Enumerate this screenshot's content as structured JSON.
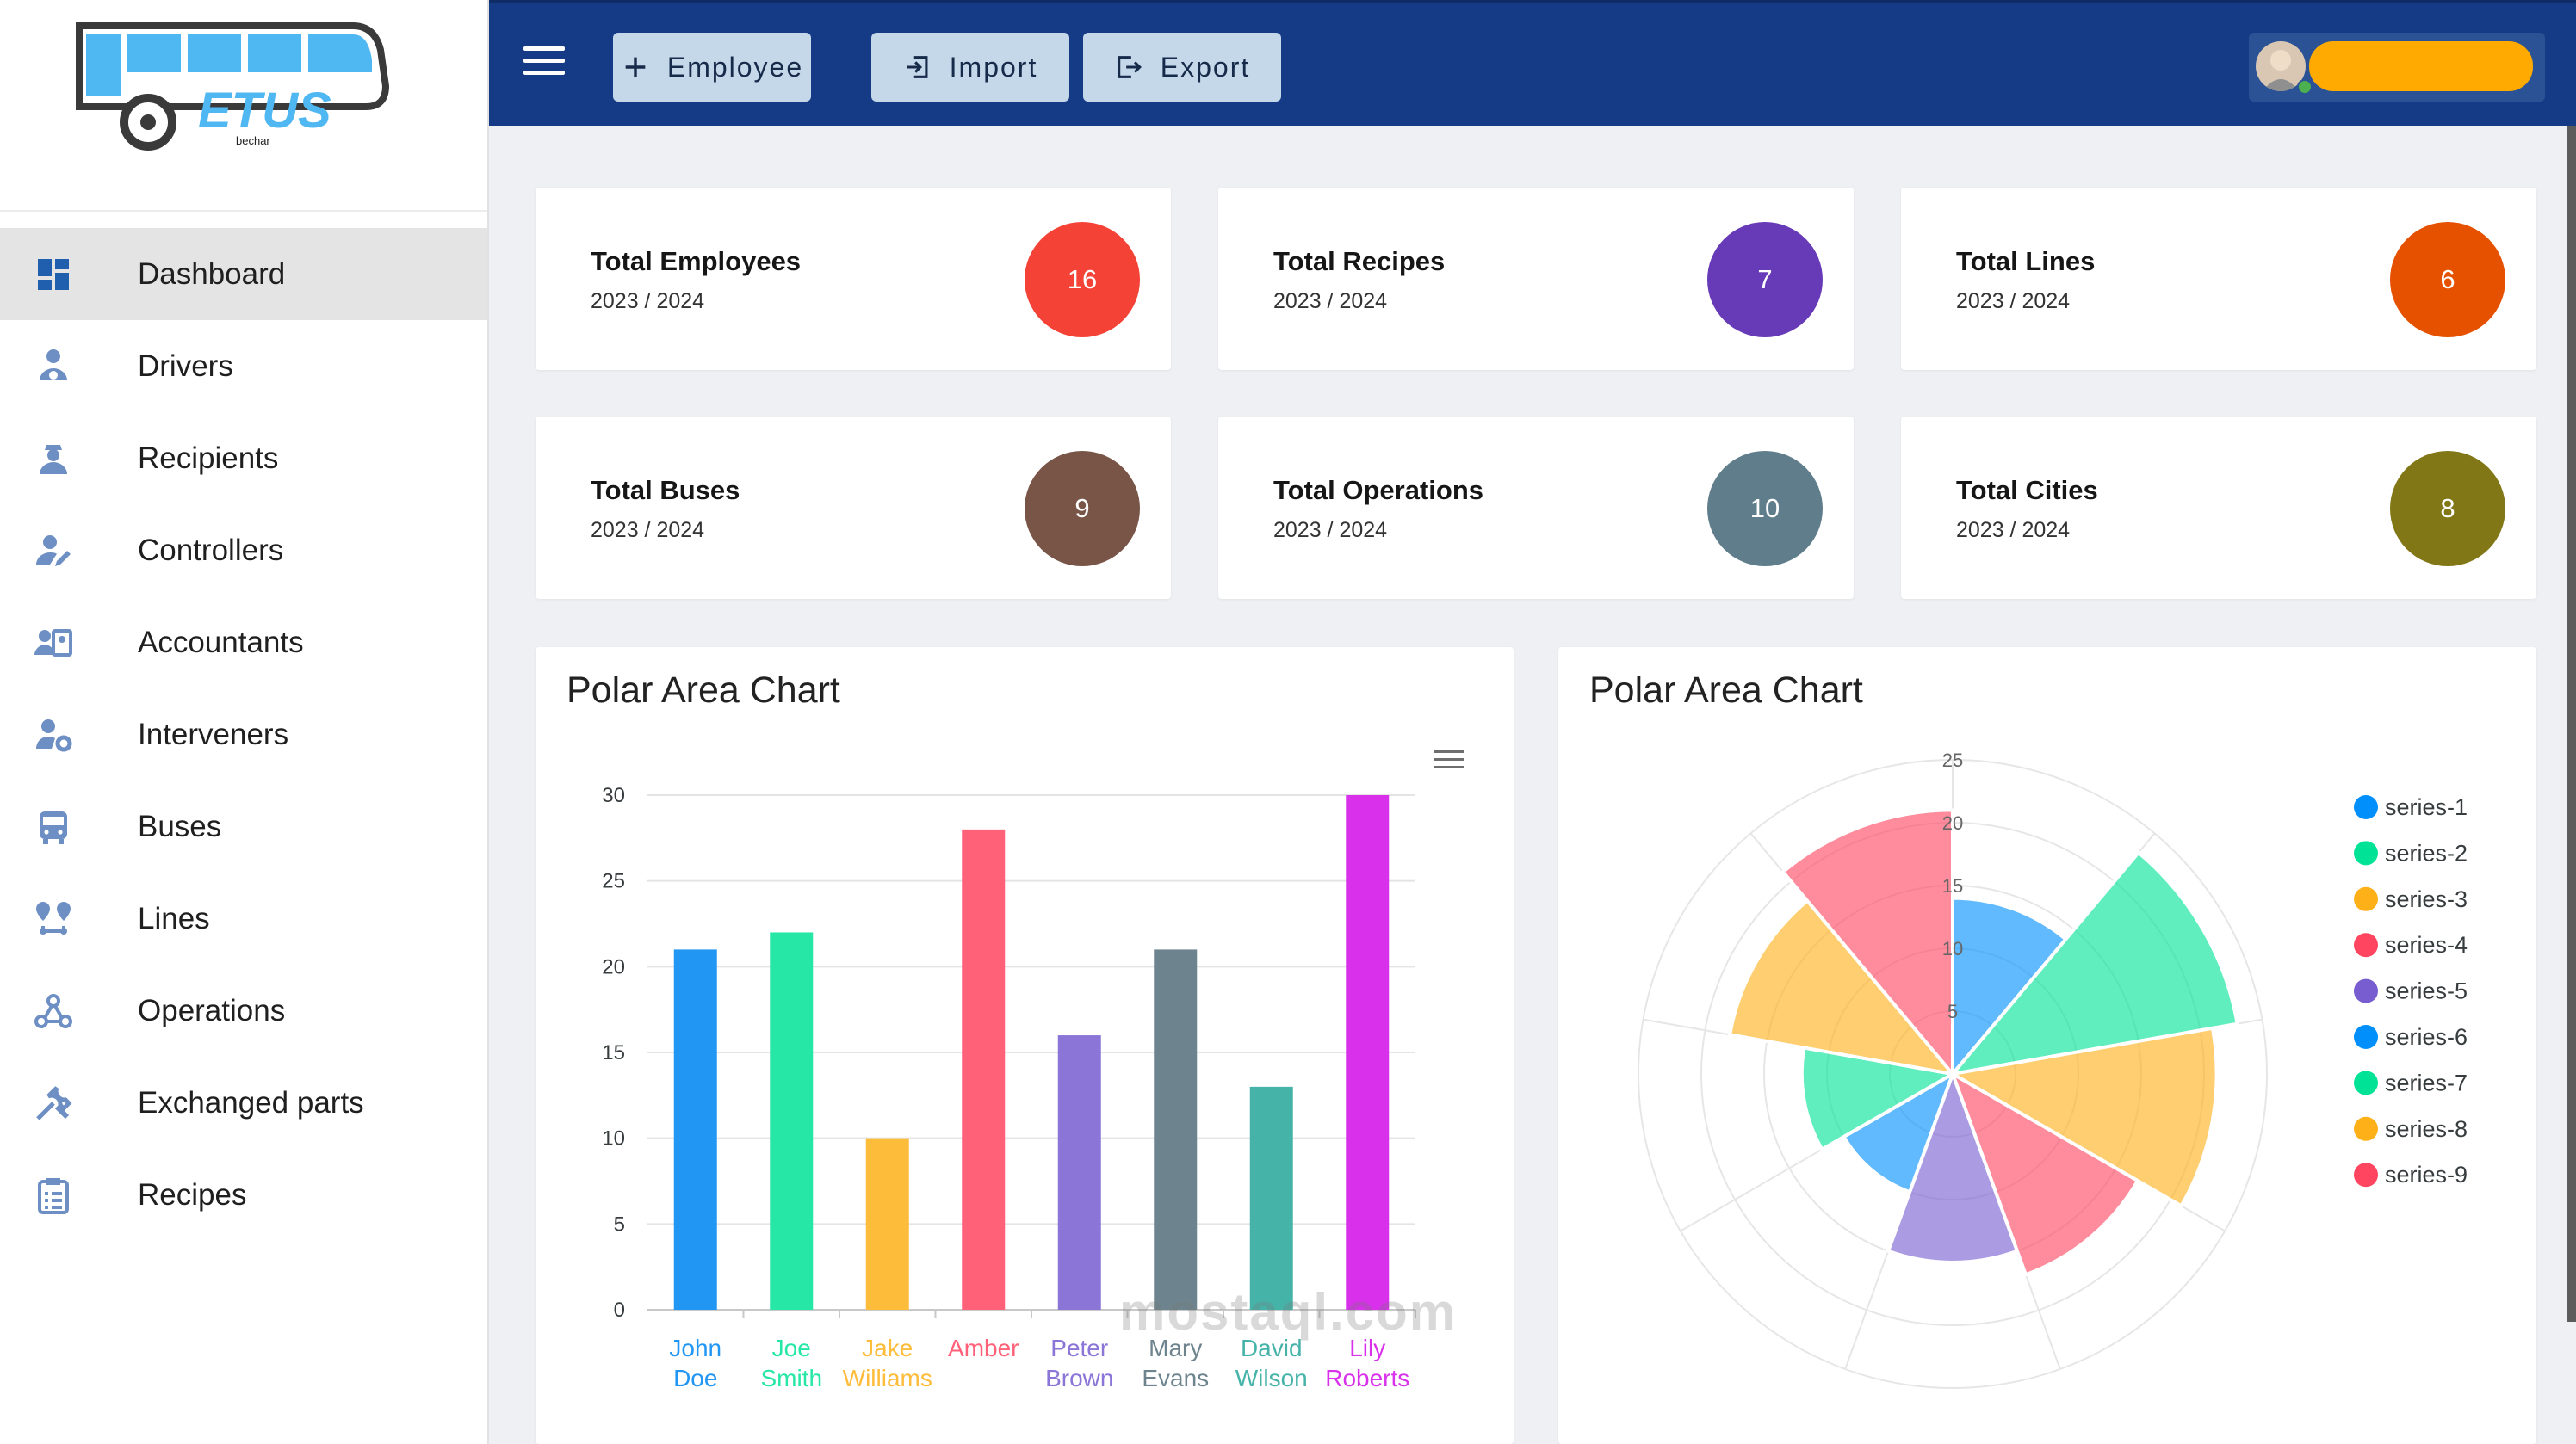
{
  "logo": {
    "text": "ETUS",
    "subtext": "bechar"
  },
  "nav": {
    "items": [
      {
        "label": "Dashboard",
        "icon": "dashboard-icon",
        "active": true
      },
      {
        "label": "Drivers",
        "icon": "driver-icon",
        "active": false
      },
      {
        "label": "Recipients",
        "icon": "worker-icon",
        "active": false
      },
      {
        "label": "Controllers",
        "icon": "user-edit-icon",
        "active": false
      },
      {
        "label": "Accountants",
        "icon": "id-card-icon",
        "active": false
      },
      {
        "label": "Interveners",
        "icon": "user-gear-icon",
        "active": false
      },
      {
        "label": "Buses",
        "icon": "bus-icon",
        "active": false
      },
      {
        "label": "Lines",
        "icon": "route-icon",
        "active": false
      },
      {
        "label": "Operations",
        "icon": "webhook-icon",
        "active": false
      },
      {
        "label": "Exchanged parts",
        "icon": "tools-icon",
        "active": false
      },
      {
        "label": "Recipes",
        "icon": "clipboard-icon",
        "active": false
      }
    ]
  },
  "toolbar": {
    "employee_label": "Employee",
    "import_label": "Import",
    "export_label": "Export"
  },
  "user": {
    "name": ""
  },
  "stats": [
    {
      "title": "Total Employees",
      "period": "2023 / 2024",
      "value": "16",
      "color": "#f44336"
    },
    {
      "title": "Total Recipes",
      "period": "2023 / 2024",
      "value": "7",
      "color": "#673ab7"
    },
    {
      "title": "Total Lines",
      "period": "2023 / 2024",
      "value": "6",
      "color": "#e65100"
    },
    {
      "title": "Total Buses",
      "period": "2023 / 2024",
      "value": "9",
      "color": "#795548"
    },
    {
      "title": "Total Operations",
      "period": "2023 / 2024",
      "value": "10",
      "color": "#607d8b"
    },
    {
      "title": "Total Cities",
      "period": "2023 / 2024",
      "value": "8",
      "color": "#827717"
    }
  ],
  "charts": {
    "bar_title": "Polar Area Chart",
    "polar_title": "Polar Area Chart"
  },
  "chart_data": [
    {
      "type": "bar",
      "title": "Polar Area Chart",
      "categories": [
        [
          "John",
          "Doe"
        ],
        [
          "Joe",
          "Smith"
        ],
        [
          "Jake",
          "Williams"
        ],
        [
          "Amber"
        ],
        [
          "Peter",
          "Brown"
        ],
        [
          "Mary",
          "Evans"
        ],
        [
          "David",
          "Wilson"
        ],
        [
          "Lily",
          "Roberts"
        ]
      ],
      "values": [
        21,
        22,
        10,
        28,
        16,
        21,
        13,
        30
      ],
      "colors": [
        "#2196f3",
        "#26e7a6",
        "#febc3b",
        "#ff6178",
        "#8b75d7",
        "#6d848e",
        "#46b3a9",
        "#d830eb"
      ],
      "ylim": [
        0,
        30
      ],
      "yticks": [
        0,
        5,
        10,
        15,
        20,
        25,
        30
      ],
      "grid": true
    },
    {
      "type": "polar-area",
      "title": "Polar Area Chart",
      "series": [
        {
          "name": "series-1",
          "value": 14,
          "color": "#008ffb"
        },
        {
          "name": "series-2",
          "value": 23,
          "color": "#00e396"
        },
        {
          "name": "series-3",
          "value": 21,
          "color": "#feb019"
        },
        {
          "name": "series-4",
          "value": 17,
          "color": "#ff4560"
        },
        {
          "name": "series-5",
          "value": 15,
          "color": "#775dd0"
        },
        {
          "name": "series-6",
          "value": 10,
          "color": "#008ffb"
        },
        {
          "name": "series-7",
          "value": 12,
          "color": "#00e396"
        },
        {
          "name": "series-8",
          "value": 18,
          "color": "#feb019"
        },
        {
          "name": "series-9",
          "value": 21,
          "color": "#ff4560"
        }
      ],
      "rlim": [
        0,
        25
      ],
      "rticks": [
        5,
        10,
        15,
        20,
        25
      ],
      "legend": "right"
    }
  ],
  "watermark": "mostaql.com"
}
